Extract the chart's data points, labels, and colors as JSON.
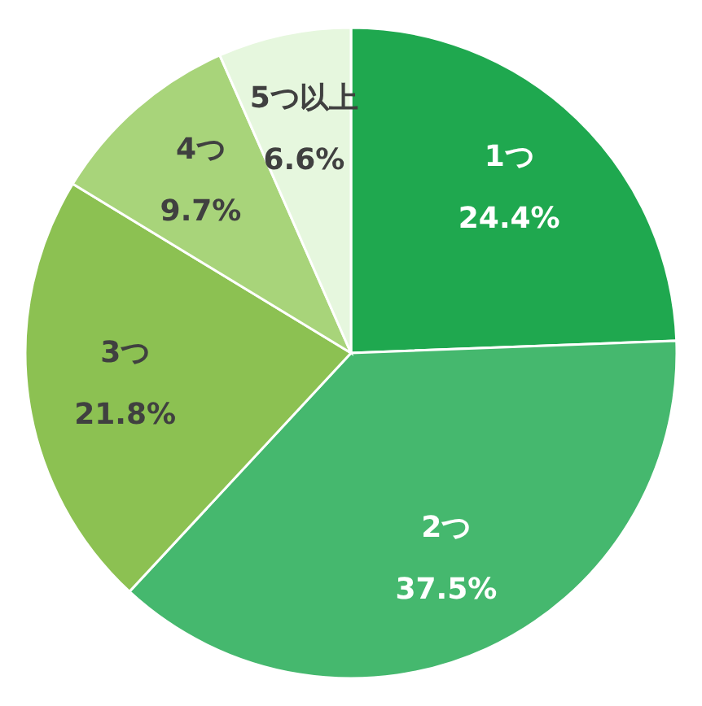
{
  "chart_data": {
    "type": "pie",
    "categories": [
      "1つ",
      "2つ",
      "3つ",
      "4つ",
      "5つ以上"
    ],
    "values": [
      24.4,
      37.5,
      21.8,
      9.7,
      6.6
    ],
    "colors": [
      "#1fa84f",
      "#45b86e",
      "#8cc152",
      "#a8d47a",
      "#e6f7de"
    ],
    "value_labels": [
      "24.4%",
      "37.5%",
      "21.8%",
      "9.7%",
      "6.6%"
    ],
    "legend": false
  }
}
